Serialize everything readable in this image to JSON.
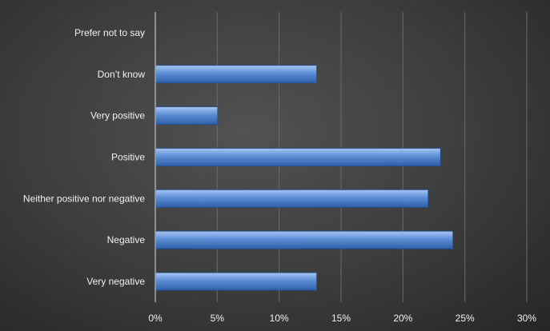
{
  "chart_data": {
    "type": "bar",
    "orientation": "horizontal",
    "categories": [
      "Prefer not to say",
      "Don’t know",
      "Very positive",
      "Positive",
      "Neither positive nor negative",
      "Negative",
      "Very negative"
    ],
    "values": [
      0,
      13,
      5,
      23,
      22,
      24,
      13
    ],
    "value_unit": "percent",
    "xlim": [
      0,
      30
    ],
    "ticks": [
      0,
      5,
      10,
      15,
      20,
      25,
      30
    ],
    "tick_labels": [
      "0%",
      "5%",
      "10%",
      "15%",
      "20%",
      "25%",
      "30%"
    ],
    "grid": true,
    "legend": "none",
    "bar_color": "#5b8ed6",
    "background_color": "#3c3c3c",
    "text_color": "#f2f2f2"
  }
}
